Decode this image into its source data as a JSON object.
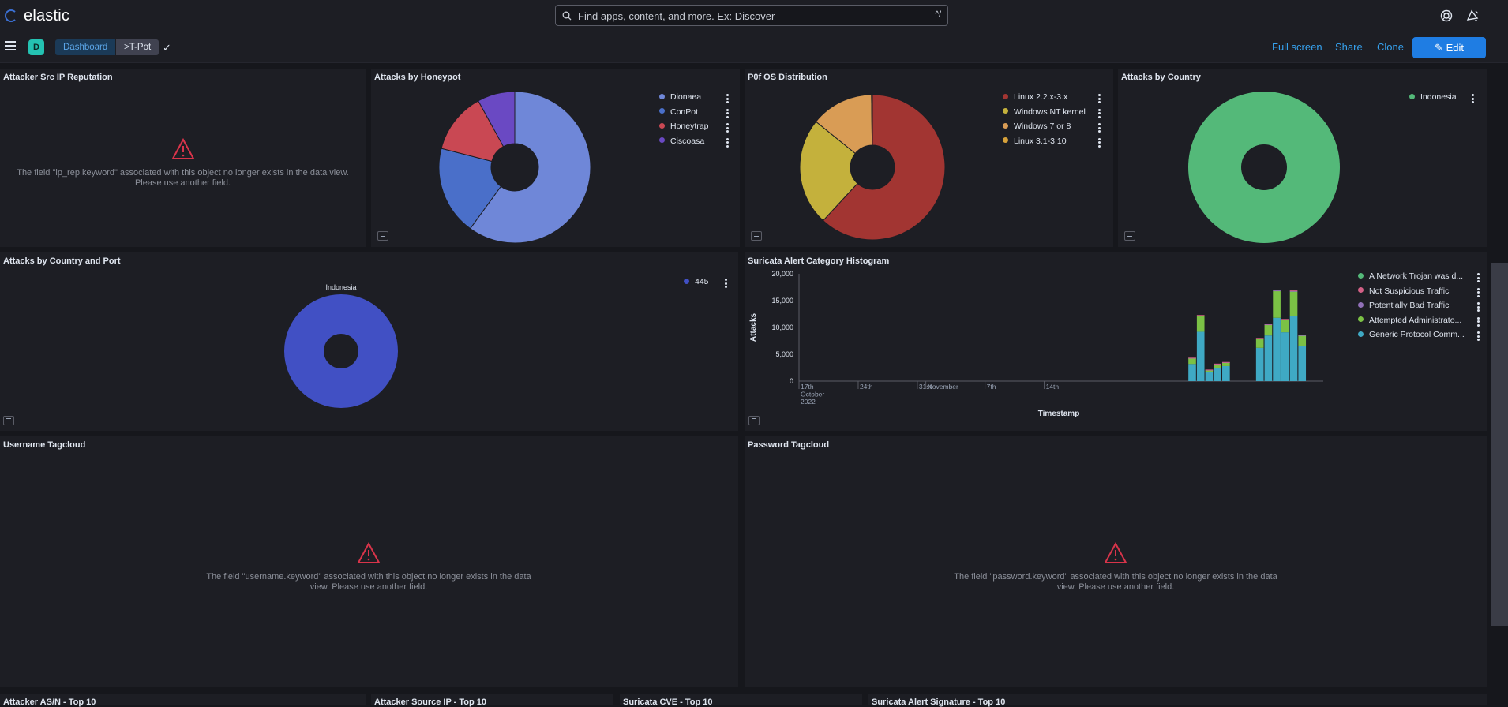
{
  "app": {
    "brand": "elastic"
  },
  "search": {
    "placeholder": "Find apps, content, and more. Ex: Discover",
    "shortcut": "^/"
  },
  "header": {
    "space_initial": "D",
    "breadcrumbs": [
      "Dashboard",
      ">T-Pot"
    ],
    "actions": {
      "full_screen": "Full screen",
      "share": "Share",
      "clone": "Clone",
      "edit": "Edit"
    }
  },
  "panels": {
    "src_ip_rep": {
      "title": "Attacker Src IP Reputation",
      "error": "The field \"ip_rep.keyword\" associated with this object no longer exists in the data view. Please use another field."
    },
    "honeypot": {
      "title": "Attacks by Honeypot"
    },
    "p0f": {
      "title": "P0f OS Distribution"
    },
    "country": {
      "title": "Attacks by Country"
    },
    "country_port": {
      "title": "Attacks by Country and Port",
      "pie_label": "Indonesia"
    },
    "suricata_hist": {
      "title": "Suricata Alert Category Histogram"
    },
    "username_cloud": {
      "title": "Username Tagcloud",
      "error": "The field \"username.keyword\" associated with this object no longer exists in the data view. Please use another field."
    },
    "password_cloud": {
      "title": "Password Tagcloud",
      "error": "The field \"password.keyword\" associated with this object no longer exists in the data view. Please use another field."
    },
    "bottom": [
      "Attacker AS/N - Top 10",
      "Attacker Source IP - Top 10",
      "Suricata CVE - Top 10",
      "Suricata Alert Signature - Top 10"
    ]
  },
  "chart_data": [
    {
      "type": "pie",
      "title": "Attacks by Honeypot",
      "donut": true,
      "categories": [
        "Dionaea",
        "ConPot",
        "Honeytrap",
        "Ciscoasa"
      ],
      "values": [
        60,
        19,
        13,
        8
      ],
      "colors": [
        "#6f87d8",
        "#4a6fc9",
        "#c94853",
        "#6a49c3"
      ]
    },
    {
      "type": "pie",
      "title": "P0f OS Distribution",
      "donut": true,
      "categories": [
        "Linux 2.2.x-3.x",
        "Windows NT kernel",
        "Windows 7 or 8",
        "Linux 3.1-3.10"
      ],
      "values": [
        62,
        24,
        14,
        0.2
      ],
      "colors": [
        "#a23532",
        "#c4b13c",
        "#d99c55",
        "#d6a13a"
      ]
    },
    {
      "type": "pie",
      "title": "Attacks by Country",
      "donut": true,
      "categories": [
        "Indonesia"
      ],
      "values": [
        100
      ],
      "colors": [
        "#54b979"
      ]
    },
    {
      "type": "pie",
      "title": "Attacks by Country and Port",
      "donut": true,
      "categories": [
        "445"
      ],
      "values": [
        100
      ],
      "colors": [
        "#4150c4"
      ]
    },
    {
      "type": "bar",
      "stacked": true,
      "title": "Suricata Alert Category Histogram",
      "xlabel": "Timestamp",
      "ylabel": "Attacks",
      "ytick_labels": [
        "0",
        "5,000",
        "10,000",
        "15,000",
        "20,000"
      ],
      "xtick_labels": [
        "17th\nOctober\n2022",
        "24th",
        "31st",
        "November",
        "7th",
        "14th"
      ],
      "series_names": [
        "A Network Trojan was d...",
        "Not Suspicious Traffic",
        "Potentially Bad Traffic",
        "Attempted Administrato...",
        "Generic Protocol Comm..."
      ],
      "series_colors": [
        "#54b979",
        "#d36086",
        "#9170b8",
        "#7bc145",
        "#3fa9c4"
      ],
      "bars": [
        {
          "day": 46.5,
          "stack": [
            0,
            40,
            30,
            1100,
            3200
          ]
        },
        {
          "day": 47.5,
          "stack": [
            0,
            60,
            60,
            3000,
            9200
          ]
        },
        {
          "day": 48.5,
          "stack": [
            0,
            30,
            20,
            400,
            1700
          ]
        },
        {
          "day": 49.5,
          "stack": [
            0,
            30,
            30,
            800,
            2400
          ]
        },
        {
          "day": 50.5,
          "stack": [
            0,
            40,
            30,
            700,
            2800
          ]
        },
        {
          "day": 54.5,
          "stack": [
            0,
            90,
            60,
            1700,
            6200
          ]
        },
        {
          "day": 55.5,
          "stack": [
            0,
            100,
            80,
            2000,
            8500
          ]
        },
        {
          "day": 56.5,
          "stack": [
            0,
            150,
            100,
            5000,
            11800
          ]
        },
        {
          "day": 57.5,
          "stack": [
            0,
            100,
            80,
            2300,
            9100
          ]
        },
        {
          "day": 58.5,
          "stack": [
            0,
            140,
            100,
            4500,
            12200
          ]
        },
        {
          "day": 59.5,
          "stack": [
            0,
            100,
            70,
            2000,
            6500
          ]
        }
      ],
      "x_range_days": [
        0,
        62
      ],
      "x_ticks_days": [
        0,
        7,
        14,
        15,
        22,
        29
      ],
      "ylim": [
        0,
        20000
      ]
    }
  ]
}
